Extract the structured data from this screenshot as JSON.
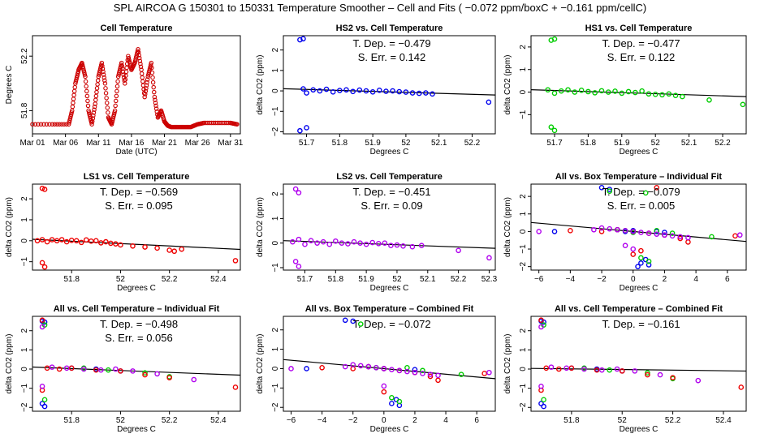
{
  "figure": {
    "supertitle": "SPL   AIRCOA G   150301 to 150331   Temperature Smoother – Cell and Fits ( −0.072  ppm/boxC +  −0.161  ppm/cellC)"
  },
  "colors": {
    "ts": "#cc0000",
    "hs2": "#0000ee",
    "hs1": "#00cc00",
    "ls1": "#ee0000",
    "ls2": "#b000ee",
    "fit": "#000000"
  },
  "chart_data": [
    {
      "type": "line",
      "title": "Cell Temperature",
      "xlabel": "Date (UTC)",
      "ylabel": "Degrees C",
      "xlim": [
        0,
        31.5
      ],
      "ylim": [
        51.63,
        52.35
      ],
      "xticks": [
        0,
        5,
        10,
        15,
        20,
        25,
        30
      ],
      "xticklabels": [
        "Mar 01",
        "Mar 06",
        "Mar 11",
        "Mar 16",
        "Mar 21",
        "Mar 26",
        "Mar 31"
      ],
      "yticks": [
        51.8,
        52.2
      ],
      "yticklabels": [
        "51.8",
        "52.2"
      ],
      "series": [
        {
          "name": "cell temperature",
          "x": [
            0,
            3,
            5.5,
            6,
            6.5,
            7,
            7.5,
            8,
            8.5,
            9,
            9.5,
            10,
            10.5,
            11,
            11.5,
            12,
            12.5,
            13,
            13.5,
            14,
            14.5,
            15,
            15.5,
            16,
            16.5,
            17,
            17.5,
            18,
            18.5,
            19,
            19.5,
            20,
            20.5,
            21,
            22,
            23,
            24,
            25,
            26,
            28,
            30,
            31
          ],
          "y": [
            51.7,
            51.7,
            51.7,
            51.8,
            52.0,
            52.1,
            52.15,
            52.05,
            51.8,
            51.7,
            51.85,
            52.05,
            52.15,
            52.0,
            51.75,
            51.7,
            51.8,
            52.05,
            52.15,
            52.0,
            52.2,
            52.1,
            52.15,
            52.25,
            52.1,
            51.9,
            52.05,
            52.15,
            51.9,
            51.75,
            51.8,
            51.72,
            51.69,
            51.68,
            51.68,
            51.68,
            51.68,
            51.7,
            51.71,
            51.71,
            51.71,
            51.7
          ]
        }
      ]
    },
    {
      "type": "scatter",
      "title": "HS2 vs. Cell Temperature",
      "xlabel": "Degrees C",
      "ylabel": "delta CO2 (ppm)",
      "xlim": [
        51.63,
        52.27
      ],
      "ylim": [
        -2.1,
        2.7
      ],
      "xticks": [
        51.7,
        51.8,
        51.9,
        52.0,
        52.1,
        52.2
      ],
      "yticks": [
        -2,
        -1,
        0,
        1,
        2
      ],
      "annotations": [
        "T. Dep. =  −0.479",
        "S. Err. =  0.142"
      ],
      "fit": {
        "slope": -0.479,
        "x0": 51.85,
        "y0": 0.0
      },
      "series": [
        {
          "name": "HS2",
          "color": "#0000ee",
          "x": [
            51.68,
            51.69,
            51.7,
            51.68,
            51.69,
            51.7,
            51.72,
            51.74,
            51.76,
            51.78,
            51.8,
            51.82,
            51.84,
            51.86,
            51.88,
            51.9,
            51.92,
            51.94,
            51.96,
            51.98,
            52.0,
            52.02,
            52.04,
            52.06,
            52.08,
            52.25
          ],
          "y": [
            2.5,
            2.55,
            -1.8,
            -1.95,
            0.1,
            -0.1,
            0.05,
            0.0,
            0.08,
            -0.05,
            0.02,
            0.05,
            -0.03,
            0.04,
            0.0,
            -0.05,
            0.03,
            -0.02,
            0.0,
            -0.04,
            -0.06,
            -0.1,
            -0.12,
            -0.1,
            -0.15,
            -0.55
          ]
        }
      ]
    },
    {
      "type": "scatter",
      "title": "HS1 vs. Cell Temperature",
      "xlabel": "Degrees C",
      "ylabel": "delta CO2 (ppm)",
      "xlim": [
        51.63,
        52.27
      ],
      "ylim": [
        -1.85,
        2.5
      ],
      "xticks": [
        51.7,
        51.8,
        51.9,
        52.0,
        52.1,
        52.2
      ],
      "yticks": [
        -1,
        0,
        1,
        2
      ],
      "annotations": [
        "T. Dep. =  −0.477",
        "S. Err. =  0.122"
      ],
      "fit": {
        "slope": -0.477,
        "x0": 51.85,
        "y0": 0.0
      },
      "series": [
        {
          "name": "HS1",
          "color": "#00cc00",
          "x": [
            51.69,
            51.7,
            51.69,
            51.7,
            51.68,
            51.7,
            51.72,
            51.74,
            51.76,
            51.78,
            51.8,
            51.82,
            51.84,
            51.86,
            51.88,
            51.9,
            51.92,
            51.94,
            51.96,
            51.98,
            52.0,
            52.02,
            52.04,
            52.06,
            52.08,
            52.16,
            52.26
          ],
          "y": [
            2.3,
            2.35,
            -1.55,
            -1.7,
            0.1,
            -0.05,
            0.05,
            0.1,
            0.0,
            0.08,
            0.02,
            -0.03,
            0.06,
            0.0,
            0.04,
            -0.05,
            0.02,
            -0.02,
            0.05,
            -0.08,
            -0.1,
            -0.12,
            -0.08,
            -0.15,
            -0.2,
            -0.35,
            -0.55
          ]
        }
      ]
    },
    {
      "type": "scatter",
      "title": "LS1 vs. Cell Temperature",
      "xlabel": "Degrees C",
      "ylabel": "delta CO2 (ppm)",
      "xlim": [
        51.64,
        52.49
      ],
      "ylim": [
        -1.4,
        2.7
      ],
      "xticks": [
        51.8,
        52.0,
        52.2,
        52.4
      ],
      "yticks": [
        -1,
        0,
        1,
        2
      ],
      "annotations": [
        "T. Dep. =  −0.569",
        "S. Err. =  0.095"
      ],
      "fit": {
        "slope": -0.569,
        "x0": 51.85,
        "y0": -0.05
      },
      "series": [
        {
          "name": "LS1",
          "color": "#ee0000",
          "x": [
            51.68,
            51.69,
            51.68,
            51.69,
            51.66,
            51.68,
            51.7,
            51.72,
            51.74,
            51.76,
            51.78,
            51.8,
            51.82,
            51.84,
            51.86,
            51.88,
            51.9,
            51.92,
            51.94,
            51.96,
            51.98,
            52.0,
            52.05,
            52.1,
            52.15,
            52.2,
            52.22,
            52.25,
            52.47
          ],
          "y": [
            2.5,
            2.45,
            -1.05,
            -1.25,
            0.0,
            0.05,
            -0.05,
            0.05,
            0.0,
            0.05,
            -0.05,
            0.02,
            0.0,
            -0.08,
            0.04,
            -0.02,
            0.0,
            -0.1,
            -0.05,
            -0.12,
            -0.15,
            -0.2,
            -0.25,
            -0.3,
            -0.35,
            -0.45,
            -0.5,
            -0.4,
            -0.95
          ]
        }
      ]
    },
    {
      "type": "scatter",
      "title": "LS2 vs. Cell Temperature",
      "xlabel": "Degrees C",
      "ylabel": "delta CO2 (ppm)",
      "xlim": [
        51.63,
        52.32
      ],
      "ylim": [
        -1.1,
        2.4
      ],
      "xticks": [
        51.7,
        51.8,
        51.9,
        52.0,
        52.1,
        52.2,
        52.3
      ],
      "yticks": [
        -1,
        0,
        1,
        2
      ],
      "annotations": [
        "T. Dep. =  −0.451",
        "S. Err. =  0.09"
      ],
      "fit": {
        "slope": -0.451,
        "x0": 51.85,
        "y0": 0.0
      },
      "series": [
        {
          "name": "LS2",
          "color": "#b000ee",
          "x": [
            51.67,
            51.68,
            51.67,
            51.68,
            51.66,
            51.68,
            51.7,
            51.72,
            51.74,
            51.76,
            51.78,
            51.8,
            51.82,
            51.84,
            51.86,
            51.88,
            51.9,
            51.92,
            51.94,
            51.96,
            51.98,
            52.0,
            52.02,
            52.05,
            52.08,
            52.2,
            52.3
          ],
          "y": [
            2.2,
            2.05,
            -0.75,
            -0.95,
            0.05,
            0.15,
            -0.05,
            0.1,
            0.0,
            0.05,
            -0.05,
            0.08,
            0.0,
            -0.03,
            0.05,
            0.0,
            -0.05,
            0.02,
            -0.02,
            0.0,
            -0.1,
            -0.08,
            -0.12,
            -0.15,
            -0.1,
            -0.3,
            -0.6
          ]
        }
      ]
    },
    {
      "type": "scatter",
      "title": "All vs. Box Temperature – Individual Fit",
      "xlabel": "Degrees C",
      "ylabel": "delta CO2 (ppm)",
      "xlim": [
        -6.5,
        7.2
      ],
      "ylim": [
        -2.2,
        2.7
      ],
      "xticks": [
        -6,
        -4,
        -2,
        0,
        2,
        4,
        6
      ],
      "yticks": [
        -2,
        -1,
        0,
        1,
        2
      ],
      "annotations": [
        "T. Dep. =  −0.079",
        "S. Err. =  0.005"
      ],
      "fit": {
        "slope": -0.079,
        "x0": 0,
        "y0": 0.0
      },
      "series": [
        {
          "name": "HS2",
          "color": "#0000ee",
          "x": [
            -2,
            -1.5,
            -1,
            -0.5,
            0,
            0.5,
            1,
            0.3,
            0.8,
            1.5,
            2,
            -5
          ],
          "y": [
            2.5,
            2.4,
            0.1,
            0.0,
            0.05,
            -1.8,
            -1.9,
            -2.0,
            -1.6,
            0.0,
            -0.05,
            0.0
          ]
        },
        {
          "name": "HS1",
          "color": "#00cc00",
          "x": [
            -1.5,
            -1,
            -0.5,
            0,
            0.5,
            1,
            1.5,
            2.5,
            5,
            0.8
          ],
          "y": [
            2.3,
            0.1,
            0.05,
            -0.05,
            -1.5,
            -1.7,
            0.05,
            -0.1,
            -0.3,
            2.2
          ]
        },
        {
          "name": "LS1",
          "color": "#ee0000",
          "x": [
            -4,
            -2,
            -1,
            0,
            1,
            2,
            3,
            3.5,
            0.5,
            0,
            1.5,
            6.5
          ],
          "y": [
            0.05,
            0.0,
            0.1,
            0.0,
            -0.1,
            -0.2,
            -0.4,
            -0.6,
            -1.1,
            -1.3,
            2.5,
            -0.25
          ]
        },
        {
          "name": "LS2",
          "color": "#b000ee",
          "x": [
            -6,
            -2.5,
            -2,
            -1.5,
            -1,
            -0.5,
            0,
            0.5,
            1,
            1.5,
            2,
            2.5,
            3,
            3.5,
            -0.5,
            0,
            6.8
          ],
          "y": [
            0.0,
            0.1,
            0.2,
            0.15,
            0.1,
            0.05,
            0.0,
            -0.05,
            -0.1,
            -0.15,
            -0.2,
            -0.25,
            -0.3,
            -0.35,
            -0.8,
            -1.0,
            -0.2
          ]
        }
      ]
    },
    {
      "type": "scatter",
      "title": "All vs. Cell Temperature – Individual Fit",
      "xlabel": "Degrees C",
      "ylabel": "delta CO2 (ppm)",
      "xlim": [
        51.64,
        52.49
      ],
      "ylim": [
        -2.2,
        2.75
      ],
      "xticks": [
        51.8,
        52.0,
        52.2,
        52.4
      ],
      "yticks": [
        -2,
        -1,
        0,
        1,
        2
      ],
      "annotations": [
        "T. Dep. =  −0.498",
        "S. Err. =  0.056"
      ],
      "fit": {
        "slope": -0.498,
        "x0": 51.85,
        "y0": 0.0
      },
      "series": [
        {
          "name": "HS2",
          "color": "#0000ee",
          "x": [
            51.68,
            51.69,
            51.68,
            51.69,
            51.8,
            51.9,
            52.0
          ],
          "y": [
            2.5,
            2.45,
            -1.8,
            -1.95,
            0.05,
            0.0,
            -0.1
          ]
        },
        {
          "name": "HS1",
          "color": "#00cc00",
          "x": [
            51.69,
            51.69,
            51.85,
            51.95,
            52.1,
            52.2
          ],
          "y": [
            2.3,
            -1.6,
            0.05,
            -0.05,
            -0.2,
            -0.4
          ]
        },
        {
          "name": "LS1",
          "color": "#ee0000",
          "x": [
            51.68,
            51.68,
            51.7,
            51.75,
            51.8,
            51.9,
            52.0,
            52.1,
            52.2,
            52.47
          ],
          "y": [
            2.55,
            -1.1,
            0.05,
            0.0,
            0.05,
            -0.05,
            -0.1,
            -0.3,
            -0.45,
            -0.95
          ]
        },
        {
          "name": "LS2",
          "color": "#b000ee",
          "x": [
            51.68,
            51.68,
            51.72,
            51.78,
            51.85,
            51.92,
            51.98,
            52.05,
            52.15,
            52.3
          ],
          "y": [
            2.2,
            -0.9,
            0.1,
            0.05,
            0.0,
            -0.05,
            0.0,
            -0.1,
            -0.25,
            -0.55
          ]
        }
      ]
    },
    {
      "type": "scatter",
      "title": "All vs. Box Temperature – Combined Fit",
      "xlabel": "Degrees C",
      "ylabel": "delta CO2 (ppm)",
      "xlim": [
        -6.5,
        7.2
      ],
      "ylim": [
        -2.2,
        2.7
      ],
      "xticks": [
        -6,
        -4,
        -2,
        0,
        2,
        4,
        6
      ],
      "yticks": [
        -2,
        -1,
        0,
        1,
        2
      ],
      "annotations": [
        "T. Dep. =  −0.072"
      ],
      "fit": {
        "slope": -0.072,
        "x0": 0,
        "y0": 0.0
      },
      "series": [
        {
          "name": "HS2",
          "color": "#0000ee",
          "x": [
            -2.5,
            -2,
            -1,
            0,
            0.5,
            1,
            0.8,
            2,
            -5
          ],
          "y": [
            2.5,
            2.45,
            0.1,
            0.0,
            -1.8,
            -1.9,
            -1.6,
            -0.05,
            0.0
          ]
        },
        {
          "name": "HS1",
          "color": "#00cc00",
          "x": [
            -1.5,
            -0.5,
            0.5,
            1,
            1.5,
            2.5,
            5
          ],
          "y": [
            2.3,
            0.05,
            -1.5,
            -1.7,
            0.05,
            -0.1,
            -0.3
          ]
        },
        {
          "name": "LS1",
          "color": "#ee0000",
          "x": [
            -4,
            -2,
            -1,
            0,
            1,
            2,
            3,
            3.5,
            0,
            6.5
          ],
          "y": [
            0.05,
            0.0,
            0.1,
            0.0,
            -0.1,
            -0.2,
            -0.4,
            -0.6,
            -1.2,
            -0.25
          ]
        },
        {
          "name": "LS2",
          "color": "#b000ee",
          "x": [
            -6,
            -2.5,
            -2,
            -1.5,
            -1,
            -0.5,
            0,
            0.5,
            1,
            1.5,
            2,
            2.5,
            3,
            3.5,
            0,
            6.8
          ],
          "y": [
            0.0,
            0.1,
            0.2,
            0.15,
            0.1,
            0.05,
            0.0,
            -0.05,
            -0.1,
            -0.15,
            -0.2,
            -0.25,
            -0.3,
            -0.35,
            -0.9,
            -0.2
          ]
        }
      ]
    },
    {
      "type": "scatter",
      "title": "All vs. Cell Temperature – Combined Fit",
      "xlabel": "Degrees C",
      "ylabel": "delta CO2 (ppm)",
      "xlim": [
        51.64,
        52.49
      ],
      "ylim": [
        -2.2,
        2.75
      ],
      "xticks": [
        51.8,
        52.0,
        52.2,
        52.4
      ],
      "yticks": [
        -2,
        -1,
        0,
        1,
        2
      ],
      "annotations": [
        "T. Dep. =  −0.161"
      ],
      "fit": {
        "slope": -0.161,
        "x0": 51.85,
        "y0": 0.0
      },
      "series": [
        {
          "name": "HS2",
          "color": "#0000ee",
          "x": [
            51.68,
            51.69,
            51.68,
            51.69,
            51.8,
            51.9,
            52.0
          ],
          "y": [
            2.5,
            2.45,
            -1.8,
            -1.95,
            0.05,
            0.0,
            -0.1
          ]
        },
        {
          "name": "HS1",
          "color": "#00cc00",
          "x": [
            51.69,
            51.69,
            51.85,
            51.95,
            52.1,
            52.2
          ],
          "y": [
            2.3,
            -1.6,
            0.05,
            -0.05,
            -0.2,
            -0.5
          ]
        },
        {
          "name": "LS1",
          "color": "#ee0000",
          "x": [
            51.68,
            51.68,
            51.7,
            51.75,
            51.8,
            51.9,
            52.0,
            52.1,
            52.2,
            52.47
          ],
          "y": [
            2.55,
            -1.1,
            0.05,
            0.0,
            0.05,
            -0.05,
            -0.1,
            -0.3,
            -0.45,
            -0.95
          ]
        },
        {
          "name": "LS2",
          "color": "#b000ee",
          "x": [
            51.68,
            51.68,
            51.72,
            51.78,
            51.85,
            51.92,
            51.98,
            52.05,
            52.15,
            52.3
          ],
          "y": [
            2.2,
            -0.9,
            0.1,
            0.05,
            0.0,
            -0.05,
            0.0,
            -0.1,
            -0.3,
            -0.6
          ]
        }
      ]
    }
  ]
}
